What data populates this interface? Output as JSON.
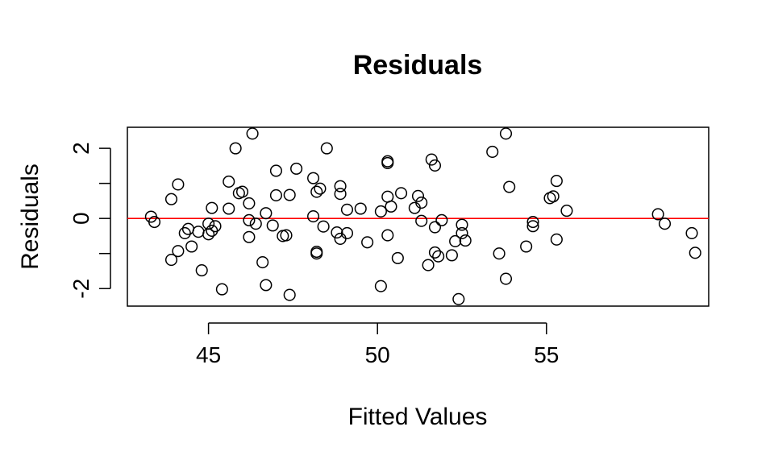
{
  "chart_data": {
    "type": "scatter",
    "title": "Residuals",
    "xlabel": "Fitted Values",
    "ylabel": "Residuals",
    "xlim": [
      42.6,
      59.8
    ],
    "ylim": [
      -2.5,
      2.6
    ],
    "x_ticks": [
      45,
      50,
      55
    ],
    "x_tick_labels": [
      "45",
      "50",
      "55"
    ],
    "y_ticks": [
      -2,
      -1,
      0,
      1,
      2
    ],
    "y_tick_labels": [
      "-2",
      "",
      "0",
      "",
      "2"
    ],
    "reference_line": {
      "y": 0,
      "color": "#ff0000"
    },
    "grid": false,
    "legend": "none",
    "marker": "open-circle",
    "points": [
      [
        43.3,
        0.05
      ],
      [
        43.4,
        -0.1
      ],
      [
        43.9,
        0.55
      ],
      [
        43.9,
        -1.18
      ],
      [
        44.1,
        0.97
      ],
      [
        44.1,
        -0.93
      ],
      [
        44.3,
        -0.42
      ],
      [
        44.4,
        -0.3
      ],
      [
        44.5,
        -0.8
      ],
      [
        44.7,
        -0.38
      ],
      [
        44.8,
        -1.48
      ],
      [
        45.0,
        -0.45
      ],
      [
        45.0,
        -0.15
      ],
      [
        45.1,
        0.3
      ],
      [
        45.1,
        -0.35
      ],
      [
        45.2,
        -0.22
      ],
      [
        45.4,
        -2.02
      ],
      [
        45.6,
        1.05
      ],
      [
        45.6,
        0.28
      ],
      [
        45.8,
        2.0
      ],
      [
        45.9,
        0.72
      ],
      [
        46.0,
        0.76
      ],
      [
        46.2,
        0.43
      ],
      [
        46.2,
        -0.05
      ],
      [
        46.2,
        -0.53
      ],
      [
        46.3,
        2.42
      ],
      [
        46.4,
        -0.15
      ],
      [
        46.6,
        -1.25
      ],
      [
        46.7,
        0.15
      ],
      [
        46.7,
        -1.9
      ],
      [
        46.9,
        -0.2
      ],
      [
        47.0,
        1.36
      ],
      [
        47.0,
        0.66
      ],
      [
        47.2,
        -0.5
      ],
      [
        47.3,
        -0.48
      ],
      [
        47.4,
        -2.18
      ],
      [
        47.4,
        0.67
      ],
      [
        47.6,
        1.42
      ],
      [
        48.1,
        1.15
      ],
      [
        48.1,
        0.06
      ],
      [
        48.2,
        0.76
      ],
      [
        48.2,
        -0.95
      ],
      [
        48.2,
        -1.0
      ],
      [
        48.3,
        0.85
      ],
      [
        48.4,
        -0.23
      ],
      [
        48.5,
        2.0
      ],
      [
        48.8,
        -0.4
      ],
      [
        48.9,
        0.7
      ],
      [
        48.9,
        0.92
      ],
      [
        48.9,
        -0.58
      ],
      [
        49.1,
        -0.42
      ],
      [
        49.1,
        0.25
      ],
      [
        49.5,
        0.28
      ],
      [
        49.7,
        -0.68
      ],
      [
        50.1,
        -1.93
      ],
      [
        50.1,
        0.2
      ],
      [
        50.3,
        1.63
      ],
      [
        50.3,
        1.58
      ],
      [
        50.3,
        0.62
      ],
      [
        50.3,
        -0.48
      ],
      [
        50.4,
        0.34
      ],
      [
        50.6,
        -1.13
      ],
      [
        50.7,
        0.72
      ],
      [
        51.1,
        0.3
      ],
      [
        51.2,
        0.64
      ],
      [
        51.3,
        0.45
      ],
      [
        51.3,
        -0.07
      ],
      [
        51.5,
        -1.33
      ],
      [
        51.6,
        1.68
      ],
      [
        51.7,
        1.51
      ],
      [
        51.7,
        -0.25
      ],
      [
        51.7,
        -0.97
      ],
      [
        51.8,
        -1.08
      ],
      [
        51.9,
        -0.05
      ],
      [
        52.2,
        -1.05
      ],
      [
        52.3,
        -0.65
      ],
      [
        52.4,
        -2.3
      ],
      [
        52.5,
        -0.18
      ],
      [
        52.5,
        -0.42
      ],
      [
        52.6,
        -0.63
      ],
      [
        53.4,
        1.9
      ],
      [
        53.6,
        -1.0
      ],
      [
        53.8,
        2.42
      ],
      [
        53.8,
        -1.72
      ],
      [
        53.9,
        0.9
      ],
      [
        54.4,
        -0.8
      ],
      [
        54.6,
        -0.1
      ],
      [
        54.6,
        -0.22
      ],
      [
        55.1,
        0.58
      ],
      [
        55.2,
        0.63
      ],
      [
        55.3,
        1.07
      ],
      [
        55.3,
        -0.6
      ],
      [
        55.6,
        0.22
      ],
      [
        58.3,
        0.12
      ],
      [
        58.5,
        -0.15
      ],
      [
        59.3,
        -0.42
      ],
      [
        59.4,
        -0.98
      ]
    ]
  }
}
